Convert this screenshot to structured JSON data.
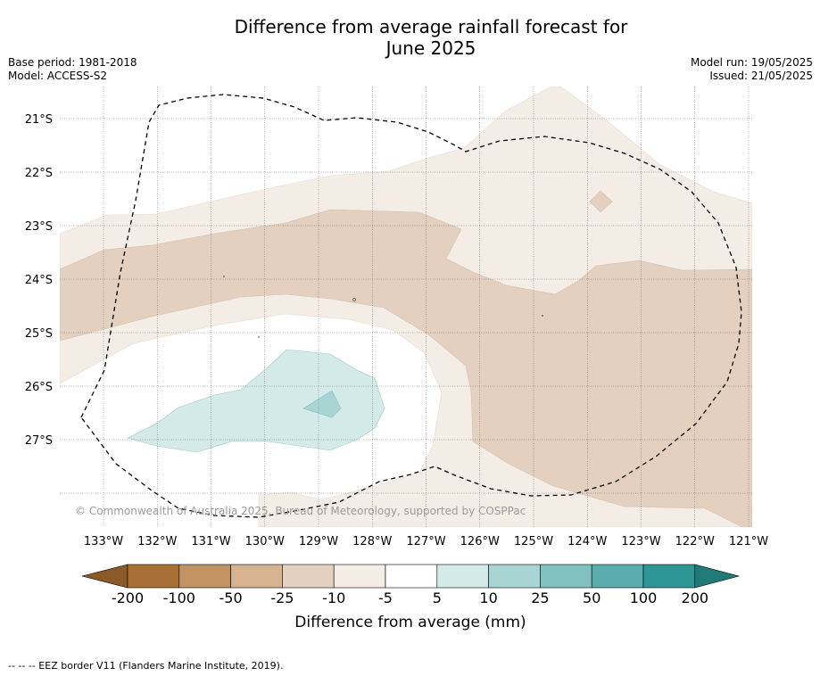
{
  "title_line1": "Difference from average rainfall forecast for",
  "title_line2": "June 2025",
  "meta_left": {
    "base_period": "Base period: 1981-2018",
    "model": "Model: ACCESS-S2"
  },
  "meta_right": {
    "model_run": "Model run: 19/05/2025",
    "issued": "Issued: 21/05/2025"
  },
  "lat_labels": [
    "21°S",
    "22°S",
    "23°S",
    "24°S",
    "25°S",
    "26°S",
    "27°S"
  ],
  "lon_labels": [
    "133°W",
    "132°W",
    "131°W",
    "130°W",
    "129°W",
    "128°W",
    "127°W",
    "126°W",
    "125°W",
    "124°W",
    "123°W",
    "122°W",
    "121°W"
  ],
  "copyright": "© Commonwealth of Australia 2025, Bureau of Meteorology, supported by COSPPac",
  "colorbar": {
    "label": "Difference from average (mm)",
    "ticks": [
      "-200",
      "-100",
      "-50",
      "-25",
      "-10",
      "-5",
      "5",
      "10",
      "25",
      "50",
      "100",
      "200"
    ],
    "colors": [
      "#a87035",
      "#c09264",
      "#d5b290",
      "#e3d0bf",
      "#f4ede6",
      "#ffffff",
      "#d3eae8",
      "#a8d5d3",
      "#81c1bf",
      "#5aadac",
      "#2e9795"
    ],
    "low_extend_color": "#8a5a28",
    "high_extend_color": "#1f7a78"
  },
  "footnote": "-- -- -- EEZ border V11 (Flanders Marine Institute, 2019)."
}
